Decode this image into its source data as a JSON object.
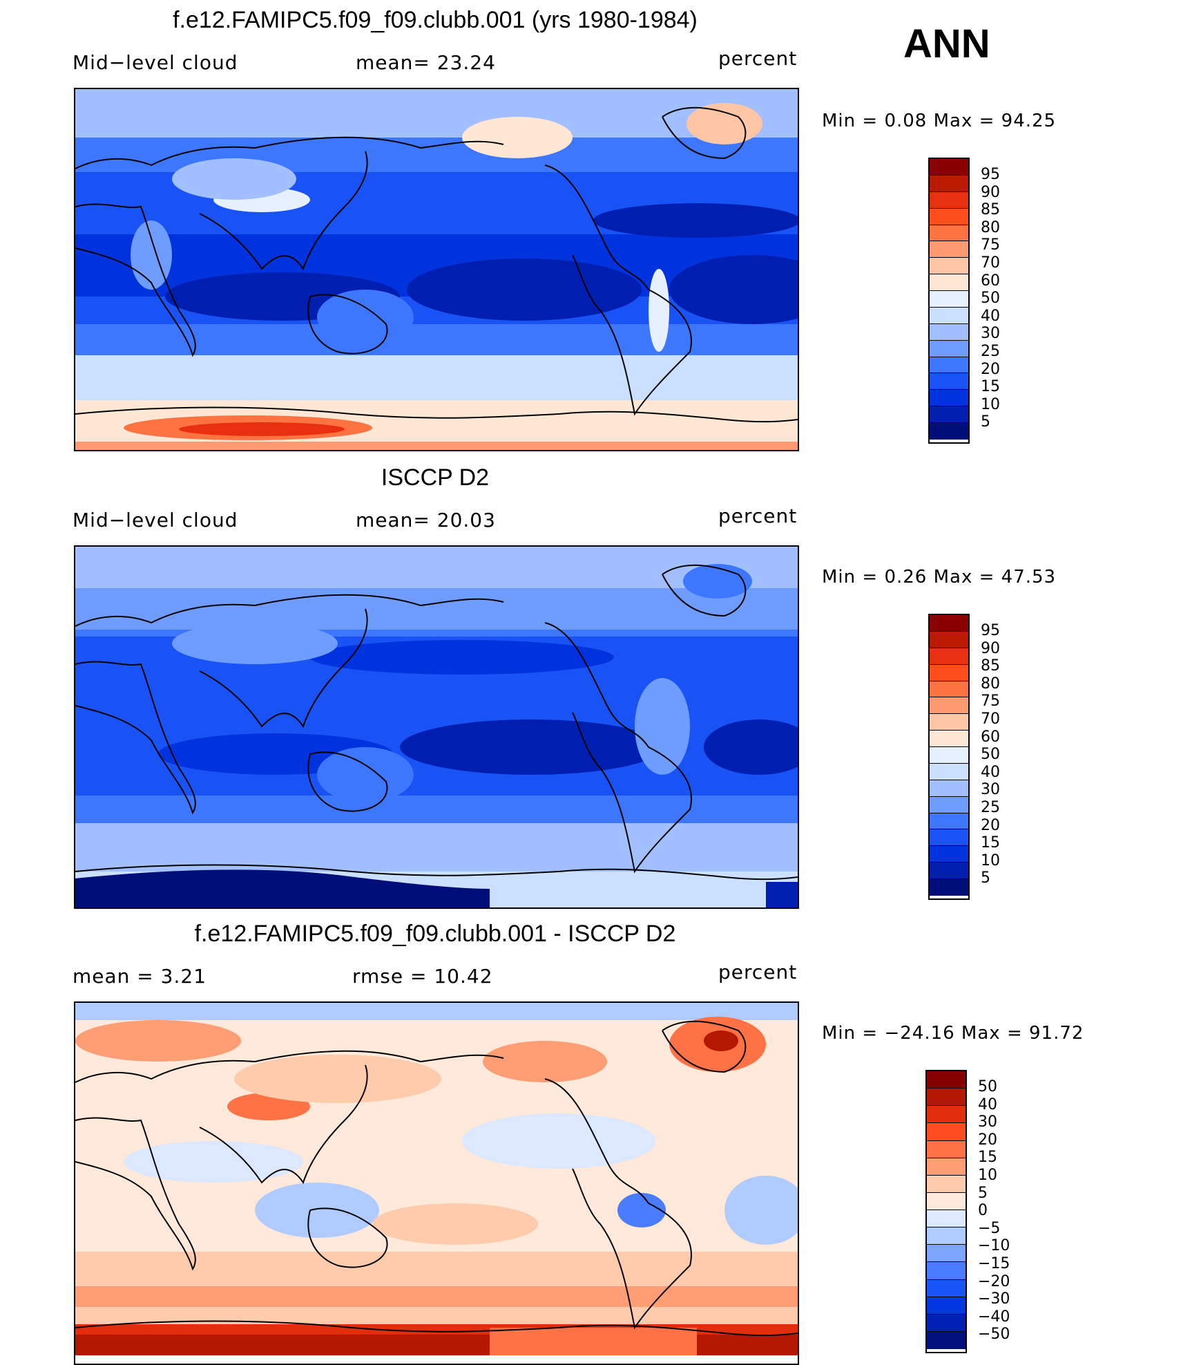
{
  "season": "ANN",
  "colors": {
    "abs_scale": [
      "#000e7a",
      "#001fb0",
      "#0033dd",
      "#1953f5",
      "#3d77ff",
      "#6e9cff",
      "#a2c0ff",
      "#cbdfff",
      "#e6f0ff",
      "#ffe7d6",
      "#ffc6a6",
      "#ff9a70",
      "#ff7343",
      "#ff4e1e",
      "#e83010",
      "#bb1a00",
      "#8a0000"
    ],
    "diff_scale": [
      "#00107d",
      "#0022b4",
      "#0037e0",
      "#1a55f7",
      "#4a7cff",
      "#7ea6ff",
      "#b0cbff",
      "#dbe8ff",
      "#ffe9db",
      "#ffcbad",
      "#ff9d75",
      "#ff7245",
      "#ff4d1f",
      "#e22e0c",
      "#b41800",
      "#840000"
    ]
  },
  "panels": [
    {
      "title": "f.e12.FAMIPC5.f09_f09.clubb.001 (yrs 1980-1984)",
      "left_label": "Mid−level  cloud",
      "center_label": "mean=   23.24",
      "units": "percent",
      "minmax": "Min  =     0.08  Max  =    94.25",
      "colorbar_labels": [
        "95",
        "90",
        "85",
        "80",
        "75",
        "70",
        "60",
        "50",
        "40",
        "30",
        "25",
        "20",
        "15",
        "10",
        "5"
      ],
      "scale": "abs"
    },
    {
      "title": "ISCCP D2",
      "left_label": "Mid−level  cloud",
      "center_label": "mean=   20.03",
      "units": "percent",
      "minmax": "Min  =     0.26  Max  =    47.53",
      "colorbar_labels": [
        "95",
        "90",
        "85",
        "80",
        "75",
        "70",
        "60",
        "50",
        "40",
        "30",
        "25",
        "20",
        "15",
        "10",
        "5"
      ],
      "scale": "abs"
    },
    {
      "title": "f.e12.FAMIPC5.f09_f09.clubb.001 - ISCCP D2",
      "left_label": "mean  =     3.21",
      "center_label": "rmse  =    10.42",
      "units": "percent",
      "minmax": "Min  = −24.16  Max  =    91.72",
      "colorbar_labels": [
        "50",
        "40",
        "30",
        "20",
        "15",
        "10",
        "5",
        "0",
        "−5",
        "−10",
        "−15",
        "−20",
        "−30",
        "−40",
        "−50"
      ],
      "scale": "diff"
    }
  ]
}
